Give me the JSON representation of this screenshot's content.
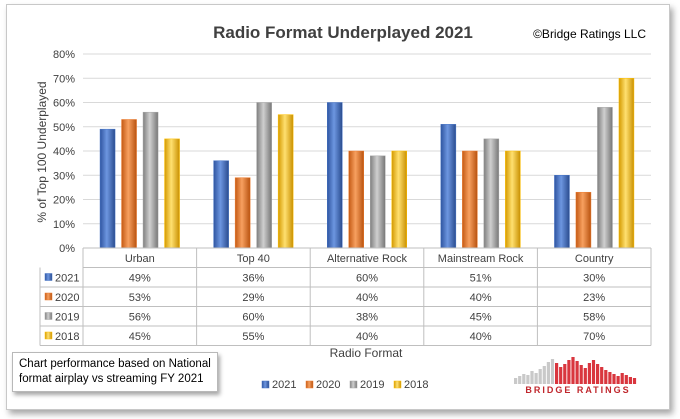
{
  "copyright": "©Bridge Ratings LLC",
  "note_lines": [
    "Chart performance based on National",
    "format airplay vs streaming FY 2021"
  ],
  "logo_text": "BRIDGE RATINGS",
  "colors": {
    "2021": "#4472c4",
    "2020": "#ed7d31",
    "2019": "#a5a5a5",
    "2018": "#ffc000"
  },
  "chart_data": {
    "type": "bar",
    "title": "Radio Format Underplayed 2021",
    "xlabel": "Radio Format",
    "ylabel": "% of Top 100 Underplayed",
    "ylim": [
      0,
      80
    ],
    "yticks": [
      "0%",
      "10%",
      "20%",
      "30%",
      "40%",
      "50%",
      "60%",
      "70%",
      "80%"
    ],
    "grid": true,
    "legend": "bottom",
    "categories": [
      "Urban",
      "Top 40",
      "Alternative Rock",
      "Mainstream Rock",
      "Country"
    ],
    "series": [
      {
        "name": "2021",
        "values": [
          49,
          36,
          60,
          51,
          30
        ],
        "labels": [
          "49%",
          "36%",
          "60%",
          "51%",
          "30%"
        ]
      },
      {
        "name": "2020",
        "values": [
          53,
          29,
          40,
          40,
          23
        ],
        "labels": [
          "53%",
          "29%",
          "40%",
          "40%",
          "23%"
        ]
      },
      {
        "name": "2019",
        "values": [
          56,
          60,
          38,
          45,
          58
        ],
        "labels": [
          "56%",
          "60%",
          "38%",
          "45%",
          "58%"
        ]
      },
      {
        "name": "2018",
        "values": [
          45,
          55,
          40,
          40,
          70
        ],
        "labels": [
          "45%",
          "55%",
          "40%",
          "40%",
          "70%"
        ]
      }
    ]
  }
}
